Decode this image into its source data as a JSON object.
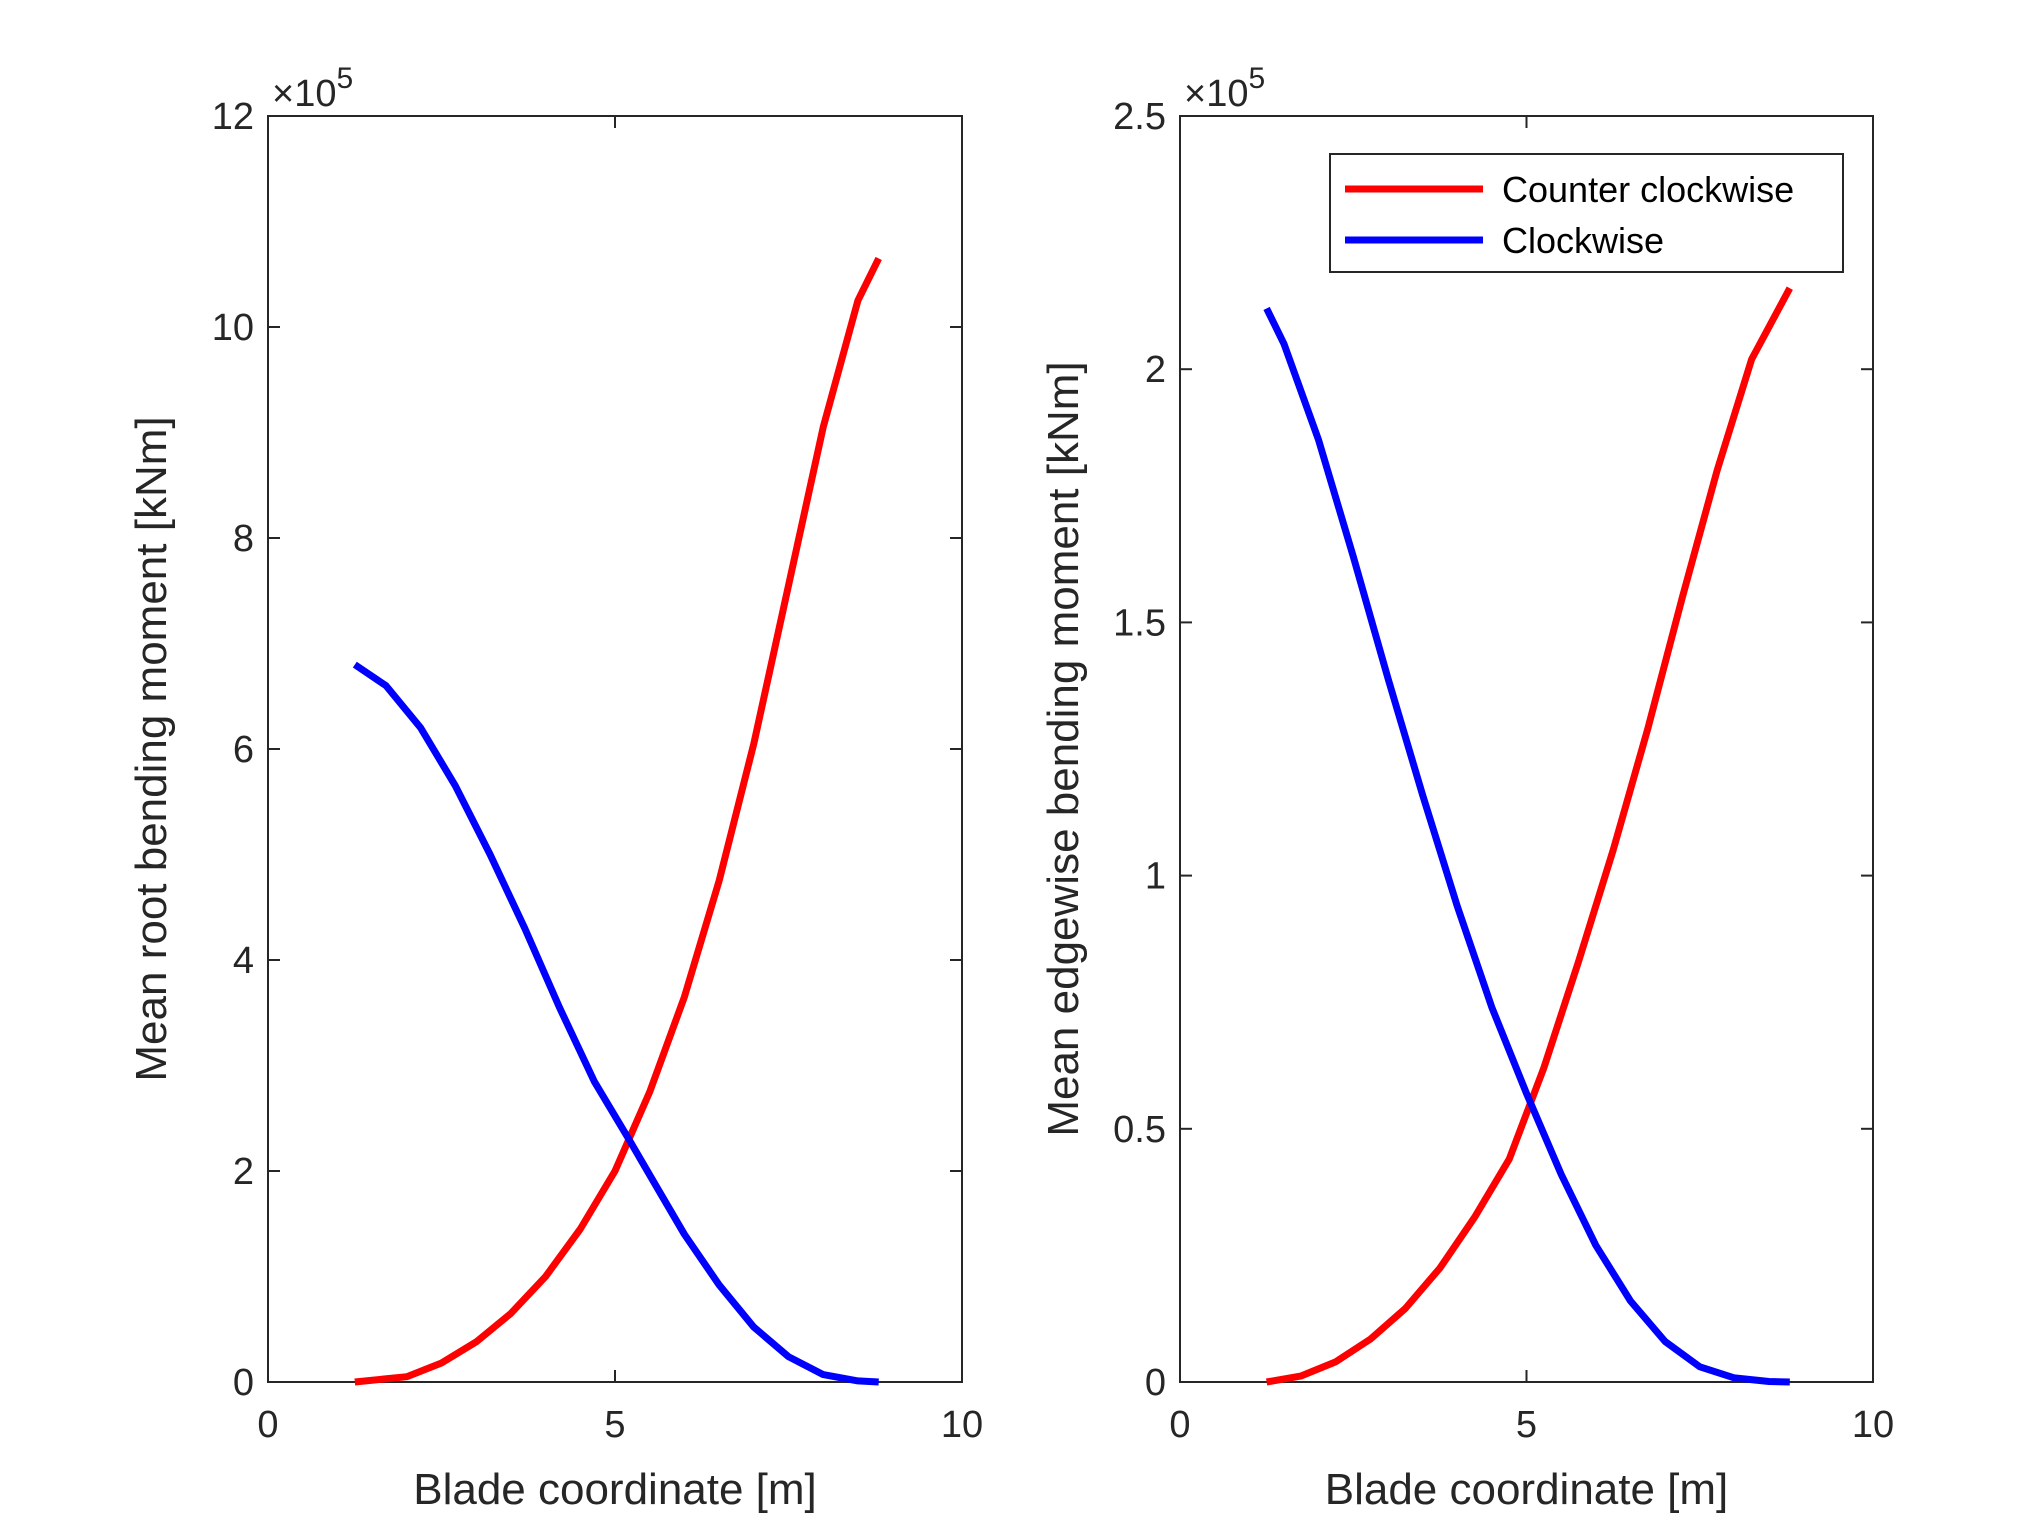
{
  "chart_data": [
    {
      "type": "line",
      "xlabel": "Blade coordinate [m]",
      "ylabel": "Mean root bending moment [kNm]",
      "xlim": [
        0,
        10
      ],
      "ylim": [
        0,
        12
      ],
      "y_multiplier": "×10",
      "y_multiplier_exp": "5",
      "xticks": [
        "0",
        "5",
        "10"
      ],
      "yticks": [
        "0",
        "2",
        "4",
        "6",
        "8",
        "10",
        "12"
      ],
      "grid": false,
      "legend": null,
      "series": [
        {
          "color": "#ff0000",
          "x": [
            1.25,
            2.0,
            2.5,
            3.0,
            3.5,
            4.0,
            4.5,
            5.0,
            5.5,
            6.0,
            6.5,
            7.0,
            7.5,
            8.0,
            8.5,
            8.8
          ],
          "y": [
            0.0,
            0.05,
            0.18,
            0.38,
            0.65,
            1.0,
            1.45,
            2.0,
            2.75,
            3.65,
            4.75,
            6.05,
            7.55,
            9.05,
            10.25,
            10.65
          ]
        },
        {
          "color": "#0000ff",
          "x": [
            1.25,
            1.7,
            2.2,
            2.7,
            3.2,
            3.7,
            4.2,
            4.7,
            5.2,
            5.6,
            6.0,
            6.5,
            7.0,
            7.5,
            8.0,
            8.5,
            8.8
          ],
          "y": [
            6.8,
            6.6,
            6.2,
            5.65,
            5.0,
            4.3,
            3.55,
            2.85,
            2.3,
            1.85,
            1.4,
            0.92,
            0.52,
            0.24,
            0.07,
            0.01,
            0.0
          ]
        }
      ]
    },
    {
      "type": "line",
      "xlabel": "Blade coordinate [m]",
      "ylabel": "Mean edgewise bending moment [kNm]",
      "xlim": [
        0,
        10
      ],
      "ylim": [
        0,
        2.5
      ],
      "y_multiplier": "×10",
      "y_multiplier_exp": "5",
      "xticks": [
        "0",
        "5",
        "10"
      ],
      "yticks": [
        "0",
        "0.5",
        "1",
        "1.5",
        "2",
        "2.5"
      ],
      "grid": false,
      "legend": {
        "position": "top-right",
        "entries": [
          "Counter clockwise",
          "Clockwise"
        ]
      },
      "series": [
        {
          "name": "Counter clockwise",
          "color": "#ff0000",
          "x": [
            1.25,
            1.75,
            2.25,
            2.75,
            3.25,
            3.75,
            4.25,
            4.75,
            5.25,
            5.75,
            6.25,
            6.75,
            7.25,
            7.75,
            8.25,
            8.8
          ],
          "y": [
            0.0,
            0.012,
            0.04,
            0.085,
            0.145,
            0.225,
            0.325,
            0.44,
            0.62,
            0.83,
            1.05,
            1.29,
            1.55,
            1.8,
            2.02,
            2.16
          ]
        },
        {
          "name": "Clockwise",
          "color": "#0000ff",
          "x": [
            1.25,
            1.5,
            2.0,
            2.5,
            3.0,
            3.5,
            4.0,
            4.5,
            5.0,
            5.5,
            6.0,
            6.5,
            7.0,
            7.5,
            8.0,
            8.5,
            8.8
          ],
          "y": [
            2.12,
            2.05,
            1.86,
            1.63,
            1.39,
            1.16,
            0.94,
            0.74,
            0.57,
            0.41,
            0.27,
            0.16,
            0.08,
            0.03,
            0.008,
            0.001,
            0.0
          ]
        }
      ]
    }
  ]
}
